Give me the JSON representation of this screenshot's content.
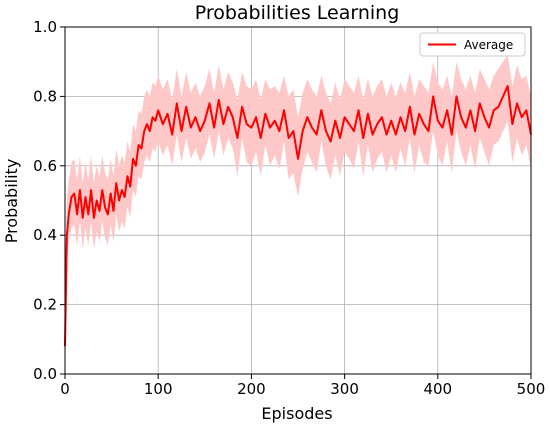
{
  "chart_data": {
    "type": "line",
    "title": "Probabilities Learning",
    "xlabel": "Episodes",
    "ylabel": "Probability",
    "xlim": [
      0,
      500
    ],
    "ylim": [
      0.0,
      1.0
    ],
    "xticks": [
      "0",
      "100",
      "200",
      "300",
      "400",
      "500"
    ],
    "yticks": [
      "0.0",
      "0.2",
      "0.4",
      "0.6",
      "0.8",
      "1.0"
    ],
    "grid": true,
    "legend_position": "top-right",
    "colors": {
      "line": "#ff0000",
      "band": "#ffc8c8"
    },
    "series": [
      {
        "name": "Average",
        "x": [
          0,
          2,
          4,
          7,
          10,
          13,
          16,
          19,
          22,
          25,
          28,
          31,
          34,
          37,
          40,
          43,
          46,
          49,
          52,
          55,
          58,
          61,
          64,
          67,
          70,
          73,
          76,
          79,
          82,
          85,
          88,
          91,
          94,
          97,
          100,
          105,
          110,
          115,
          120,
          125,
          130,
          135,
          140,
          145,
          150,
          155,
          160,
          165,
          170,
          175,
          180,
          185,
          190,
          195,
          200,
          205,
          210,
          215,
          220,
          225,
          230,
          235,
          240,
          245,
          250,
          255,
          260,
          265,
          270,
          275,
          280,
          285,
          290,
          295,
          300,
          305,
          310,
          315,
          320,
          325,
          330,
          335,
          340,
          345,
          350,
          355,
          360,
          365,
          370,
          375,
          380,
          385,
          390,
          395,
          400,
          405,
          410,
          415,
          420,
          425,
          430,
          435,
          440,
          445,
          450,
          455,
          460,
          465,
          470,
          475,
          480,
          485,
          490,
          495,
          500
        ],
        "values": [
          0.08,
          0.4,
          0.46,
          0.51,
          0.52,
          0.46,
          0.53,
          0.45,
          0.51,
          0.46,
          0.53,
          0.45,
          0.5,
          0.47,
          0.53,
          0.48,
          0.46,
          0.52,
          0.47,
          0.55,
          0.5,
          0.53,
          0.51,
          0.57,
          0.54,
          0.62,
          0.6,
          0.66,
          0.65,
          0.7,
          0.72,
          0.7,
          0.74,
          0.73,
          0.76,
          0.72,
          0.75,
          0.69,
          0.78,
          0.7,
          0.77,
          0.71,
          0.74,
          0.7,
          0.73,
          0.78,
          0.71,
          0.79,
          0.72,
          0.77,
          0.74,
          0.68,
          0.77,
          0.72,
          0.71,
          0.74,
          0.68,
          0.75,
          0.71,
          0.73,
          0.7,
          0.76,
          0.68,
          0.7,
          0.62,
          0.7,
          0.74,
          0.71,
          0.69,
          0.76,
          0.7,
          0.67,
          0.73,
          0.68,
          0.74,
          0.72,
          0.7,
          0.76,
          0.68,
          0.75,
          0.69,
          0.72,
          0.74,
          0.69,
          0.73,
          0.69,
          0.74,
          0.7,
          0.77,
          0.69,
          0.75,
          0.72,
          0.7,
          0.8,
          0.73,
          0.71,
          0.76,
          0.69,
          0.8,
          0.74,
          0.71,
          0.76,
          0.7,
          0.78,
          0.74,
          0.71,
          0.76,
          0.77,
          0.8,
          0.83,
          0.72,
          0.78,
          0.74,
          0.76,
          0.69
        ],
        "band_lower": [
          0.02,
          0.32,
          0.38,
          0.42,
          0.43,
          0.37,
          0.44,
          0.36,
          0.42,
          0.37,
          0.44,
          0.36,
          0.41,
          0.38,
          0.44,
          0.39,
          0.37,
          0.43,
          0.38,
          0.46,
          0.41,
          0.44,
          0.42,
          0.48,
          0.45,
          0.53,
          0.51,
          0.57,
          0.56,
          0.61,
          0.63,
          0.61,
          0.65,
          0.64,
          0.67,
          0.63,
          0.66,
          0.6,
          0.69,
          0.61,
          0.68,
          0.62,
          0.65,
          0.61,
          0.64,
          0.69,
          0.62,
          0.7,
          0.63,
          0.68,
          0.65,
          0.57,
          0.68,
          0.61,
          0.6,
          0.64,
          0.57,
          0.66,
          0.6,
          0.63,
          0.59,
          0.67,
          0.56,
          0.58,
          0.51,
          0.59,
          0.64,
          0.61,
          0.58,
          0.67,
          0.6,
          0.56,
          0.63,
          0.57,
          0.64,
          0.62,
          0.59,
          0.67,
          0.57,
          0.66,
          0.58,
          0.62,
          0.64,
          0.58,
          0.63,
          0.58,
          0.65,
          0.6,
          0.68,
          0.58,
          0.66,
          0.61,
          0.6,
          0.7,
          0.63,
          0.6,
          0.67,
          0.58,
          0.7,
          0.64,
          0.6,
          0.66,
          0.59,
          0.68,
          0.64,
          0.6,
          0.66,
          0.67,
          0.7,
          0.73,
          0.61,
          0.68,
          0.63,
          0.66,
          0.59
        ],
        "band_upper": [
          0.12,
          0.5,
          0.56,
          0.61,
          0.62,
          0.56,
          0.63,
          0.55,
          0.61,
          0.56,
          0.63,
          0.55,
          0.6,
          0.57,
          0.63,
          0.58,
          0.56,
          0.62,
          0.57,
          0.65,
          0.6,
          0.63,
          0.61,
          0.67,
          0.64,
          0.72,
          0.7,
          0.76,
          0.75,
          0.8,
          0.82,
          0.8,
          0.84,
          0.83,
          0.86,
          0.82,
          0.85,
          0.79,
          0.88,
          0.8,
          0.87,
          0.81,
          0.84,
          0.8,
          0.83,
          0.88,
          0.81,
          0.89,
          0.82,
          0.87,
          0.84,
          0.79,
          0.87,
          0.83,
          0.82,
          0.85,
          0.79,
          0.85,
          0.82,
          0.83,
          0.81,
          0.86,
          0.8,
          0.82,
          0.74,
          0.81,
          0.85,
          0.82,
          0.8,
          0.86,
          0.81,
          0.78,
          0.84,
          0.79,
          0.85,
          0.83,
          0.81,
          0.86,
          0.79,
          0.85,
          0.8,
          0.83,
          0.85,
          0.8,
          0.84,
          0.8,
          0.84,
          0.81,
          0.87,
          0.8,
          0.85,
          0.83,
          0.81,
          0.9,
          0.84,
          0.82,
          0.86,
          0.8,
          0.9,
          0.85,
          0.82,
          0.86,
          0.81,
          0.88,
          0.85,
          0.82,
          0.86,
          0.88,
          0.9,
          0.92,
          0.83,
          0.89,
          0.85,
          0.86,
          0.8
        ]
      }
    ]
  }
}
